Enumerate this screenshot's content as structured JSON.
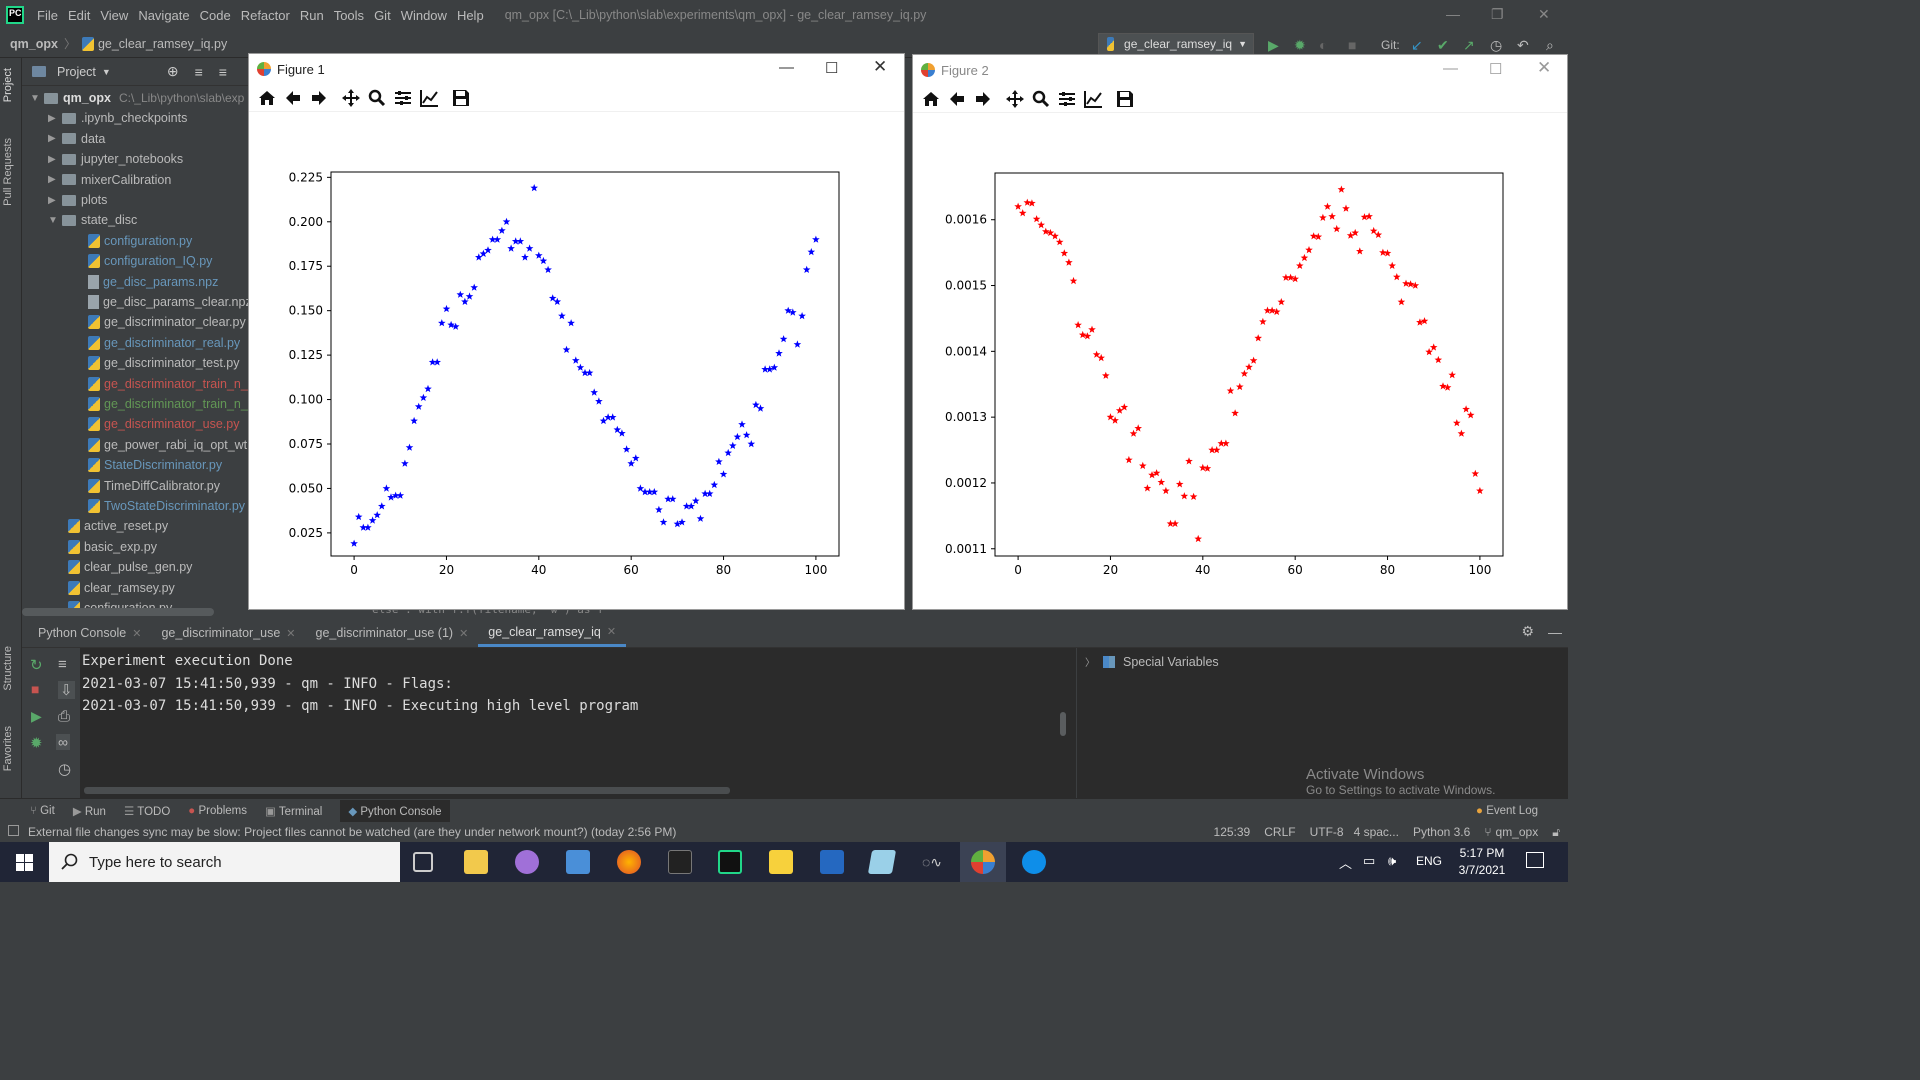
{
  "menu": {
    "items": [
      "File",
      "Edit",
      "View",
      "Navigate",
      "Code",
      "Refactor",
      "Run",
      "Tools",
      "Git",
      "Window",
      "Help"
    ],
    "window_title": "qm_opx [C:\\_Lib\\python\\slab\\experiments\\qm_opx] - ge_clear_ramsey_iq.py"
  },
  "nav": {
    "project": "qm_opx",
    "file": "ge_clear_ramsey_iq.py",
    "run_config": "ge_clear_ramsey_iq",
    "git_label": "Git:"
  },
  "project_panel": {
    "title": "Project",
    "root": "qm_opx",
    "root_path": "C:\\_Lib\\python\\slab\\exp",
    "folders": [
      ".ipynb_checkpoints",
      "data",
      "jupyter_notebooks",
      "mixerCalibration",
      "plots",
      "state_disc"
    ],
    "state_disc_files": [
      {
        "name": "configuration.py",
        "color": "#6897bb",
        "type": "py"
      },
      {
        "name": "configuration_IQ.py",
        "color": "#6897bb",
        "type": "py"
      },
      {
        "name": "ge_disc_params.npz",
        "color": "#6897bb",
        "type": "npz"
      },
      {
        "name": "ge_disc_params_clear.npz",
        "color": "#bbbbbb",
        "type": "npz"
      },
      {
        "name": "ge_discriminator_clear.py",
        "color": "#bbbbbb",
        "type": "py"
      },
      {
        "name": "ge_discriminator_real.py",
        "color": "#6897bb",
        "type": "py"
      },
      {
        "name": "ge_discriminator_test.py",
        "color": "#bbbbbb",
        "type": "py"
      },
      {
        "name": "ge_discriminator_train_n_be",
        "color": "#c75450",
        "type": "py"
      },
      {
        "name": "ge_discriminator_train_n_be",
        "color": "#629755",
        "type": "py"
      },
      {
        "name": "ge_discriminator_use.py",
        "color": "#c75450",
        "type": "py"
      },
      {
        "name": "ge_power_rabi_iq_opt_wt.p",
        "color": "#bbbbbb",
        "type": "py"
      },
      {
        "name": "StateDiscriminator.py",
        "color": "#6897bb",
        "type": "py"
      },
      {
        "name": "TimeDiffCalibrator.py",
        "color": "#bbbbbb",
        "type": "py"
      },
      {
        "name": "TwoStateDiscriminator.py",
        "color": "#6897bb",
        "type": "py"
      }
    ],
    "root_files": [
      "active_reset.py",
      "basic_exp.py",
      "clear_pulse_gen.py",
      "clear_ramsey.py",
      "configuration.py"
    ]
  },
  "left_tabs": [
    "Project",
    "Pull Requests",
    "Structure",
    "Favorites"
  ],
  "figures": [
    {
      "title": "Figure 1"
    },
    {
      "title": "Figure 2"
    }
  ],
  "chart_data": [
    {
      "type": "scatter",
      "title": "",
      "xlabel": "",
      "ylabel": "",
      "xlim": [
        -5,
        105
      ],
      "ylim": [
        0.012,
        0.228
      ],
      "color": "#0000ff",
      "marker": "*",
      "xticks": [
        "0",
        "20",
        "40",
        "60",
        "80",
        "100"
      ],
      "yticks": [
        "0.025",
        "0.050",
        "0.075",
        "0.100",
        "0.125",
        "0.150",
        "0.175",
        "0.200",
        "0.225"
      ],
      "x": [
        0,
        1,
        2,
        3,
        4,
        5,
        6,
        7,
        8,
        9,
        10,
        11,
        12,
        13,
        14,
        15,
        16,
        17,
        18,
        19,
        20,
        21,
        22,
        23,
        24,
        25,
        26,
        27,
        28,
        29,
        30,
        31,
        32,
        33,
        34,
        35,
        36,
        37,
        38,
        39,
        40,
        41,
        42,
        43,
        44,
        45,
        46,
        47,
        48,
        49,
        50,
        51,
        52,
        53,
        54,
        55,
        56,
        57,
        58,
        59,
        60,
        61,
        62,
        63,
        64,
        65,
        66,
        67,
        68,
        69,
        70,
        71,
        72,
        73,
        74,
        75,
        76,
        77,
        78,
        79,
        80,
        81,
        82,
        83,
        84,
        85,
        86,
        87,
        88,
        89,
        90,
        91,
        92,
        93,
        94,
        95,
        96,
        97,
        98,
        99,
        100
      ],
      "y": [
        0.019,
        0.034,
        0.028,
        0.028,
        0.032,
        0.035,
        0.04,
        0.05,
        0.045,
        0.046,
        0.046,
        0.064,
        0.073,
        0.088,
        0.096,
        0.101,
        0.106,
        0.121,
        0.121,
        0.143,
        0.151,
        0.142,
        0.141,
        0.159,
        0.155,
        0.158,
        0.163,
        0.18,
        0.182,
        0.184,
        0.19,
        0.19,
        0.195,
        0.2,
        0.185,
        0.189,
        0.189,
        0.18,
        0.185,
        0.219,
        0.181,
        0.178,
        0.173,
        0.157,
        0.155,
        0.147,
        0.128,
        0.143,
        0.122,
        0.118,
        0.115,
        0.115,
        0.104,
        0.099,
        0.088,
        0.09,
        0.09,
        0.083,
        0.081,
        0.072,
        0.064,
        0.067,
        0.05,
        0.048,
        0.048,
        0.048,
        0.038,
        0.031,
        0.044,
        0.044,
        0.03,
        0.031,
        0.04,
        0.04,
        0.043,
        0.033,
        0.047,
        0.047,
        0.052,
        0.065,
        0.058,
        0.07,
        0.074,
        0.079,
        0.086,
        0.08,
        0.075,
        0.097,
        0.095,
        0.117,
        0.117,
        0.118,
        0.126,
        0.134,
        0.15,
        0.149,
        0.131,
        0.147,
        0.173,
        0.183,
        0.19
      ]
    },
    {
      "type": "scatter",
      "title": "",
      "xlabel": "",
      "ylabel": "",
      "xlim": [
        -5,
        105
      ],
      "ylim": [
        0.001089,
        0.001671
      ],
      "color": "#ff0000",
      "marker": "*",
      "xticks": [
        "0",
        "20",
        "40",
        "60",
        "80",
        "100"
      ],
      "yticks": [
        "0.0011",
        "0.0012",
        "0.0013",
        "0.0014",
        "0.0015",
        "0.0016"
      ],
      "x": [
        0,
        1,
        2,
        3,
        4,
        5,
        6,
        7,
        8,
        9,
        10,
        11,
        12,
        13,
        14,
        15,
        16,
        17,
        18,
        19,
        20,
        21,
        22,
        23,
        24,
        25,
        26,
        27,
        28,
        29,
        30,
        31,
        32,
        33,
        34,
        35,
        36,
        37,
        38,
        39,
        40,
        41,
        42,
        43,
        44,
        45,
        46,
        47,
        48,
        49,
        50,
        51,
        52,
        53,
        54,
        55,
        56,
        57,
        58,
        59,
        60,
        61,
        62,
        63,
        64,
        65,
        66,
        67,
        68,
        69,
        70,
        71,
        72,
        73,
        74,
        75,
        76,
        77,
        78,
        79,
        80,
        81,
        82,
        83,
        84,
        85,
        86,
        87,
        88,
        89,
        90,
        91,
        92,
        93,
        94,
        95,
        96,
        97,
        98,
        99,
        100
      ],
      "y": [
        0.00162,
        0.00161,
        0.001626,
        0.001625,
        0.001601,
        0.001592,
        0.001582,
        0.00158,
        0.001575,
        0.001566,
        0.001549,
        0.001535,
        0.001507,
        0.00144,
        0.001425,
        0.001423,
        0.001433,
        0.001395,
        0.00139,
        0.001363,
        0.0013,
        0.001295,
        0.00131,
        0.001315,
        0.001235,
        0.001275,
        0.001283,
        0.001226,
        0.001192,
        0.001212,
        0.001215,
        0.001201,
        0.001188,
        0.001138,
        0.001138,
        0.001198,
        0.00118,
        0.001233,
        0.001179,
        0.001115,
        0.001223,
        0.001222,
        0.00125,
        0.00125,
        0.00126,
        0.00126,
        0.00134,
        0.001306,
        0.001346,
        0.001366,
        0.001376,
        0.001386,
        0.00142,
        0.001445,
        0.001462,
        0.001462,
        0.00146,
        0.001475,
        0.001512,
        0.001512,
        0.00151,
        0.00153,
        0.001542,
        0.001554,
        0.001575,
        0.001574,
        0.001603,
        0.00162,
        0.001605,
        0.001586,
        0.001646,
        0.001617,
        0.001576,
        0.00158,
        0.001552,
        0.001604,
        0.001605,
        0.001583,
        0.001577,
        0.00155,
        0.001549,
        0.00153,
        0.001513,
        0.001475,
        0.001503,
        0.001502,
        0.0015,
        0.001444,
        0.001446,
        0.001399,
        0.001406,
        0.001387,
        0.001347,
        0.001345,
        0.001364,
        0.001291,
        0.001275,
        0.001312,
        0.001303,
        0.001214,
        0.001188
      ]
    }
  ],
  "bottom_tabs": [
    "Python Console",
    "ge_discriminator_use",
    "ge_discriminator_use (1)",
    "ge_clear_ramsey_iq"
  ],
  "console_lines": [
    "Experiment execution Done",
    "2021-03-07 15:41:50,939 - qm - INFO - Flags:",
    "2021-03-07 15:41:50,939 - qm - INFO - Executing high level program"
  ],
  "partial_code": "else :    with f.f(filename, 'w') as f",
  "special_variables": "Special Variables",
  "activate": {
    "title": "Activate Windows",
    "sub": "Go to Settings to activate Windows."
  },
  "toolwindow_bar": [
    "Git",
    "Run",
    "TODO",
    "Problems",
    "Terminal",
    "Python Console"
  ],
  "event_log": "Event Log",
  "status": {
    "message": "External file changes sync may be slow: Project files cannot be watched (are they under network mount?) (today 2:56 PM)",
    "position": "125:39",
    "line_sep": "CRLF",
    "encoding": "UTF-8",
    "indent": "4 spac...",
    "interpreter": "Python 3.6",
    "branch": "qm_opx"
  },
  "taskbar": {
    "search_placeholder": "Type here to search",
    "lang": "ENG",
    "time": "5:17 PM",
    "date": "3/7/2021"
  }
}
